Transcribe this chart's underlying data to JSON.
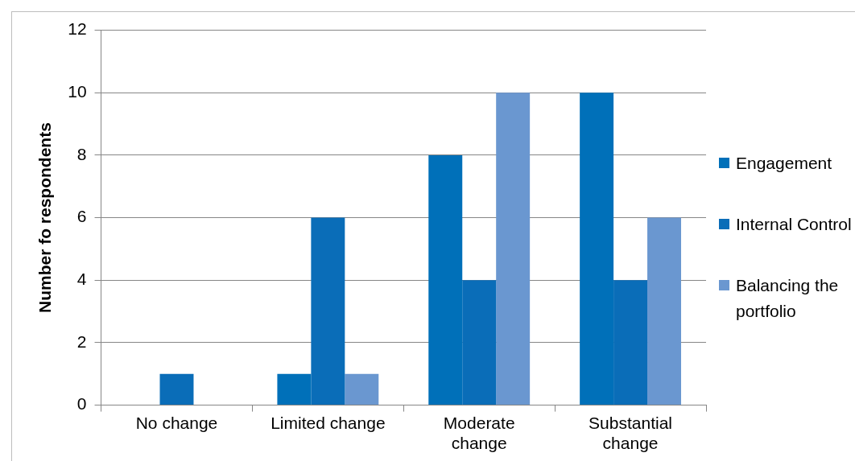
{
  "chart_data": {
    "type": "bar",
    "ylabel": "Number fo respondents",
    "categories": [
      "No change",
      "Limited change",
      "Moderate change",
      "Substantial change"
    ],
    "series": [
      {
        "name": "Engagement",
        "color": "#0070b9",
        "values": [
          0,
          1,
          8,
          10
        ]
      },
      {
        "name": "Internal Control",
        "color": "#0a6db8",
        "values": [
          1,
          6,
          4,
          4
        ]
      },
      {
        "name": "Balancing the portfolio",
        "color": "#6a97d0",
        "values": [
          0,
          1,
          10,
          6
        ]
      }
    ],
    "ylim": [
      0,
      12
    ],
    "yticks": [
      0,
      2,
      4,
      6,
      8,
      10,
      12
    ],
    "grid": "y",
    "legend": "right"
  }
}
